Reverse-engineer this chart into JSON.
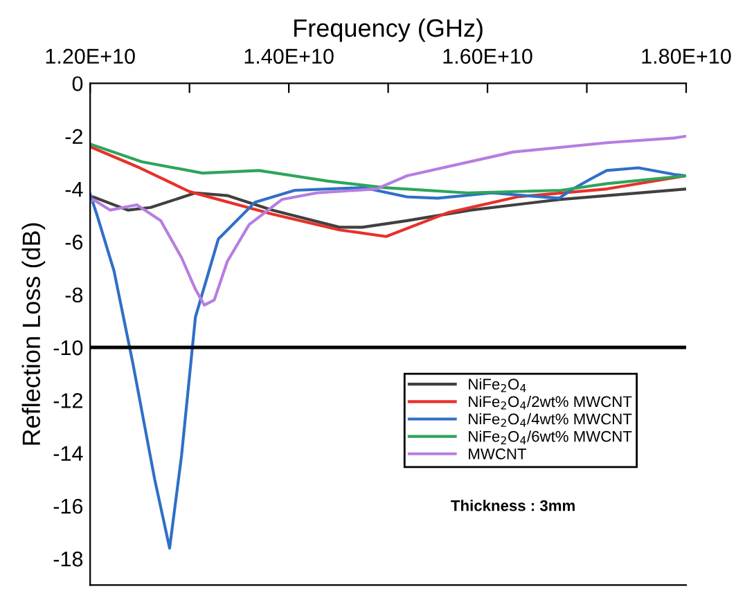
{
  "chart_data": {
    "type": "line",
    "xlabel": "Frequency (GHz)",
    "ylabel": "Reflection Loss (dB)",
    "xlim": [
      12000000000.0,
      18000000000.0
    ],
    "xticks": [
      {
        "value": 12000000000.0,
        "label": "1.20E+10"
      },
      {
        "value": 13000000000.0,
        "label": null
      },
      {
        "value": 14000000000.0,
        "label": "1.40E+10"
      },
      {
        "value": 15000000000.0,
        "label": null
      },
      {
        "value": 16000000000.0,
        "label": "1.60E+10"
      },
      {
        "value": 17000000000.0,
        "label": null
      },
      {
        "value": 18000000000.0,
        "label": "1.80E+10"
      }
    ],
    "ylim": [
      -19,
      0
    ],
    "yticks": [
      0,
      -2,
      -4,
      -6,
      -8,
      -10,
      -12,
      -14,
      -16,
      -18
    ],
    "grid": false,
    "legend": "lower right",
    "marker": "none",
    "line_style": "solid",
    "ref_lines": [
      {
        "axis": "y",
        "value": -10,
        "label": null,
        "color": "#000000"
      }
    ],
    "annotations": [
      "Thickness : 3mm"
    ],
    "series": [
      {
        "name": "NiFe$_{2}$O$_{4}$",
        "color": "#404040",
        "x": [
          12000000000.0,
          12030000000.0,
          12380000000.0,
          12610000000.0,
          13060000000.0,
          13380000000.0,
          13830000000.0,
          14510000000.0,
          14740000000.0,
          15190000000.0,
          15830000000.0,
          16720000000.0,
          18000000000.0
        ],
        "values": [
          -4.3,
          -4.3,
          -4.8,
          -4.7,
          -4.15,
          -4.25,
          -4.8,
          -5.45,
          -5.45,
          -5.2,
          -4.8,
          -4.4,
          -4.0
        ]
      },
      {
        "name": "NiFe$_{2}$O$_{4}$/2wt% MWCNT",
        "color": "#e8302a",
        "x": [
          12000000000.0,
          12500000000.0,
          13000000000.0,
          13830000000.0,
          14510000000.0,
          14980000000.0,
          15600000000.0,
          16300000000.0,
          17200000000.0,
          18000000000.0
        ],
        "values": [
          -2.4,
          -3.2,
          -4.1,
          -4.95,
          -5.55,
          -5.8,
          -4.9,
          -4.3,
          -4.0,
          -3.5
        ]
      },
      {
        "name": "NiFe$_{2}$O$_{4}$/4wt% MWCNT",
        "color": "#2f6fc7",
        "x": [
          12000000000.0,
          12070000000.0,
          12240000000.0,
          12430000000.0,
          12650000000.0,
          12800000000.0,
          12920000000.0,
          13060000000.0,
          13290000000.0,
          13660000000.0,
          14060000000.0,
          14740000000.0,
          14880000000.0,
          15190000000.0,
          15500000000.0,
          16040000000.0,
          16720000000.0,
          16860000000.0,
          17050000000.0,
          17200000000.0,
          17520000000.0,
          17880000000.0,
          18000000000.0
        ],
        "values": [
          -4.2,
          -5.0,
          -7.1,
          -10.6,
          -15.0,
          -17.6,
          -14.1,
          -8.85,
          -5.9,
          -4.5,
          -4.05,
          -3.95,
          -4.05,
          -4.3,
          -4.35,
          -4.15,
          -4.35,
          -4.0,
          -3.6,
          -3.3,
          -3.2,
          -3.45,
          -3.5
        ]
      },
      {
        "name": "NiFe$_{2}$O$_{4}$/6wt% MWCNT",
        "color": "#2ea55a",
        "x": [
          12000000000.0,
          12520000000.0,
          13130000000.0,
          13700000000.0,
          14390000000.0,
          14960000000.0,
          15800000000.0,
          16740000000.0,
          17200000000.0,
          18000000000.0
        ],
        "values": [
          -2.3,
          -2.97,
          -3.4,
          -3.3,
          -3.7,
          -3.95,
          -4.15,
          -4.05,
          -3.8,
          -3.5
        ]
      },
      {
        "name": "MWCNT",
        "color": "#b57ee0",
        "x": [
          12000000000.0,
          12030000000.0,
          12200000000.0,
          12470000000.0,
          12710000000.0,
          12920000000.0,
          13060000000.0,
          13150000000.0,
          13250000000.0,
          13380000000.0,
          13600000000.0,
          13930000000.0,
          14280000000.0,
          14880000000.0,
          15190000000.0,
          16260000000.0,
          17200000000.0,
          17880000000.0,
          18000000000.0
        ],
        "values": [
          -4.5,
          -4.4,
          -4.8,
          -4.6,
          -5.2,
          -6.6,
          -7.8,
          -8.4,
          -8.2,
          -6.75,
          -5.35,
          -4.4,
          -4.15,
          -4.0,
          -3.5,
          -2.6,
          -2.25,
          -2.07,
          -2.0
        ]
      }
    ]
  }
}
